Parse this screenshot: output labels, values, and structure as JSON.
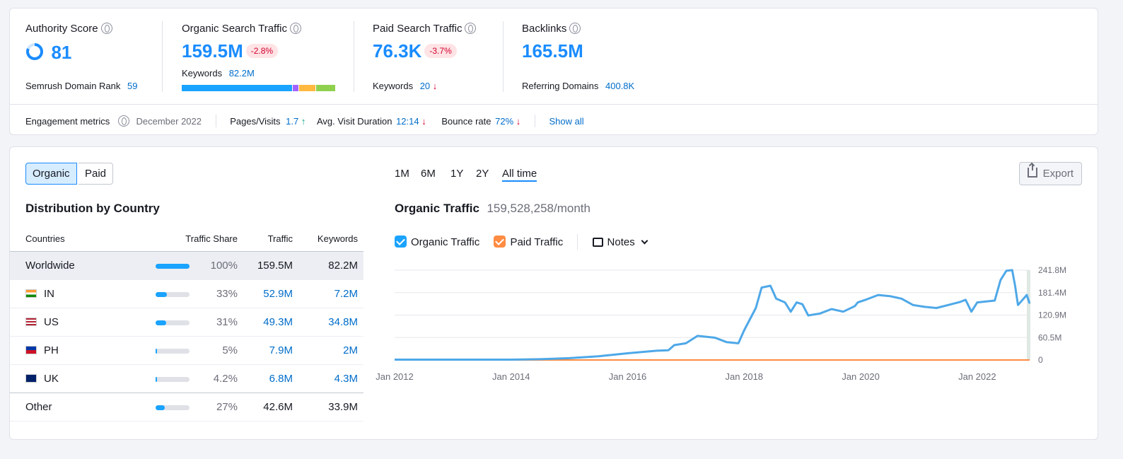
{
  "top": {
    "authority": {
      "label": "Authority Score",
      "value": "81",
      "rank_label": "Semrush Domain Rank",
      "rank_value": "59"
    },
    "organic": {
      "label": "Organic Search Traffic",
      "value": "159.5M",
      "change": "-2.8%",
      "kw_label": "Keywords",
      "kw_value": "82.2M",
      "bar_segments": [
        {
          "color": "#1aa3ff",
          "pct": 72
        },
        {
          "color": "#a363ff",
          "pct": 4
        },
        {
          "color": "#ffb840",
          "pct": 11
        },
        {
          "color": "#8fd14f",
          "pct": 13
        }
      ]
    },
    "paid": {
      "label": "Paid Search Traffic",
      "value": "76.3K",
      "change": "-3.7%",
      "kw_label": "Keywords",
      "kw_value": "20"
    },
    "backlinks": {
      "label": "Backlinks",
      "value": "165.5M",
      "ref_label": "Referring Domains",
      "ref_value": "400.8K"
    }
  },
  "engagement": {
    "label": "Engagement metrics",
    "date": "December 2022",
    "pages_label": "Pages/Visits",
    "pages_value": "1.7",
    "duration_label": "Avg. Visit Duration",
    "duration_value": "12:14",
    "bounce_label": "Bounce rate",
    "bounce_value": "72%",
    "show_all": "Show all"
  },
  "tabs": {
    "organic": "Organic",
    "paid": "Paid"
  },
  "periods": [
    "1M",
    "6M",
    "1Y",
    "2Y",
    "All time"
  ],
  "export_label": "Export",
  "distribution": {
    "title": "Distribution by Country",
    "headers": {
      "countries": "Countries",
      "share": "Traffic Share",
      "traffic": "Traffic",
      "keywords": "Keywords"
    },
    "rows": [
      {
        "country": "Worldwide",
        "share": "100%",
        "share_frac": 1.0,
        "traffic": "159.5M",
        "keywords": "82.2M"
      },
      {
        "country": "IN",
        "share": "33%",
        "share_frac": 0.33,
        "traffic": "52.9M",
        "keywords": "7.2M"
      },
      {
        "country": "US",
        "share": "31%",
        "share_frac": 0.31,
        "traffic": "49.3M",
        "keywords": "34.8M"
      },
      {
        "country": "PH",
        "share": "5%",
        "share_frac": 0.05,
        "traffic": "7.9M",
        "keywords": "2M"
      },
      {
        "country": "UK",
        "share": "4.2%",
        "share_frac": 0.042,
        "traffic": "6.8M",
        "keywords": "4.3M"
      },
      {
        "country": "Other",
        "share": "27%",
        "share_frac": 0.27,
        "traffic": "42.6M",
        "keywords": "33.9M"
      }
    ]
  },
  "traffic_chart": {
    "title": "Organic Traffic",
    "subtitle": "159,528,258/month",
    "legend": {
      "organic": "Organic Traffic",
      "paid": "Paid Traffic",
      "notes": "Notes"
    },
    "colors": {
      "organic": "#4ea8e8",
      "paid": "#ff8c42"
    }
  },
  "chart_data": {
    "type": "line",
    "x_ticks": [
      "Jan 2012",
      "Jan 2014",
      "Jan 2016",
      "Jan 2018",
      "Jan 2020",
      "Jan 2022"
    ],
    "y_ticks": [
      "241.8M",
      "181.4M",
      "120.9M",
      "60.5M",
      "0"
    ],
    "ylim": [
      0,
      241.8
    ],
    "xlim": [
      2012.0,
      2022.9
    ],
    "series": [
      {
        "name": "Organic Traffic",
        "points": [
          [
            2012.0,
            1
          ],
          [
            2013.0,
            1
          ],
          [
            2014.0,
            1
          ],
          [
            2014.5,
            2
          ],
          [
            2015.0,
            5
          ],
          [
            2015.5,
            10
          ],
          [
            2016.0,
            18
          ],
          [
            2016.5,
            25
          ],
          [
            2016.7,
            26
          ],
          [
            2016.8,
            40
          ],
          [
            2017.0,
            45
          ],
          [
            2017.2,
            65
          ],
          [
            2017.5,
            60
          ],
          [
            2017.7,
            48
          ],
          [
            2017.9,
            45
          ],
          [
            2018.0,
            80
          ],
          [
            2018.2,
            140
          ],
          [
            2018.3,
            195
          ],
          [
            2018.45,
            200
          ],
          [
            2018.55,
            165
          ],
          [
            2018.7,
            155
          ],
          [
            2018.8,
            130
          ],
          [
            2018.9,
            155
          ],
          [
            2019.0,
            150
          ],
          [
            2019.1,
            120
          ],
          [
            2019.3,
            125
          ],
          [
            2019.5,
            137
          ],
          [
            2019.7,
            130
          ],
          [
            2019.9,
            145
          ],
          [
            2019.95,
            155
          ],
          [
            2020.1,
            163
          ],
          [
            2020.3,
            175
          ],
          [
            2020.5,
            172
          ],
          [
            2020.7,
            165
          ],
          [
            2020.9,
            148
          ],
          [
            2021.1,
            143
          ],
          [
            2021.3,
            140
          ],
          [
            2021.5,
            148
          ],
          [
            2021.7,
            156
          ],
          [
            2021.8,
            162
          ],
          [
            2021.9,
            130
          ],
          [
            2022.0,
            155
          ],
          [
            2022.3,
            160
          ],
          [
            2022.4,
            215
          ],
          [
            2022.5,
            240
          ],
          [
            2022.6,
            242
          ],
          [
            2022.65,
            200
          ],
          [
            2022.7,
            148
          ],
          [
            2022.85,
            175
          ],
          [
            2022.9,
            152
          ]
        ]
      },
      {
        "name": "Paid Traffic",
        "points": [
          [
            2012.0,
            0
          ],
          [
            2022.9,
            0
          ]
        ]
      }
    ]
  }
}
